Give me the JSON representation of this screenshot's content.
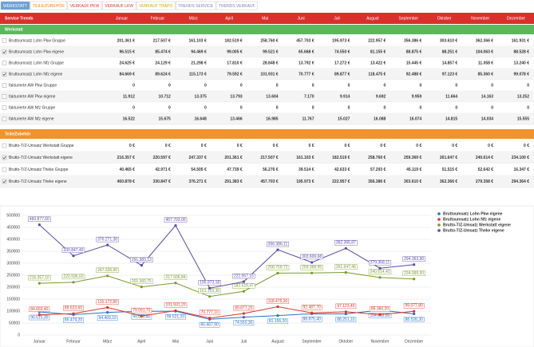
{
  "tabs": [
    "WERKSTATT",
    "TEILE/ZUBEHÖR",
    "VERKAUF PKW",
    "VERKAUF LKW",
    "VERKAUF TRAPO",
    "TRENDS SERVICE",
    "TRENDS VERKAUF"
  ],
  "table": {
    "header": [
      "Service Trends",
      "Januar",
      "Februar",
      "März",
      "April",
      "Mai",
      "Juni",
      "Juli",
      "August",
      "September",
      "Oktober",
      "November",
      "Dezember"
    ],
    "sections": [
      {
        "title": "Werkstatt",
        "color": "#5cb85c",
        "rows": [
          {
            "label": "Bruttoumsatz Lohn Pkw Gruppe",
            "checked": false,
            "cells": [
              "201.361 €",
              "217.507 €",
              "161.103 €",
              "182.519 €",
              "258.760 €",
              "457.703 €",
              "195.973 €",
              "222.957 €",
              "356.386 €",
              "303.610 €",
              "362.366 €",
              "161.931 €"
            ]
          },
          {
            "label": "Bruttoumsatz Lohn Pkw eigene",
            "checked": true,
            "cells": [
              "96.515 €",
              "85.474 €",
              "94.469 €",
              "99.005 €",
              "99.521 €",
              "65.668 €",
              "74.550 €",
              "81.155 €",
              "88.875 €",
              "88.251 €",
              "104.063 €",
              "88.528 €"
            ]
          },
          {
            "label": "Bruttoumsatz Lohn Nfz Gruppe",
            "checked": false,
            "cells": [
              "24.625 €",
              "24.129 €",
              "21.298 €",
              "17.810 €",
              "28.848 €",
              "13.792 €",
              "17.272 €",
              "13.422 €",
              "15.445 €",
              "14.857 €",
              "11.058 €",
              "13.240 €"
            ]
          },
          {
            "label": "Bruttoumsatz Lohn Nfz eigene",
            "checked": true,
            "cells": [
              "84.669 €",
              "89.624 €",
              "115.173 €",
              "79.592 €",
              "101.931 €",
              "70.777 €",
              "89.877 €",
              "118.475 €",
              "92.488 €",
              "97.123 €",
              "85.360 €",
              "99.078 €"
            ]
          },
          {
            "label": "fakturierte AW Pkw Gruppe",
            "checked": false,
            "cells": [
              "0",
              "0",
              "0",
              "0",
              "0",
              "0",
              "0",
              "0",
              "0",
              "0",
              "0",
              "0"
            ]
          },
          {
            "label": "fakturierte AW Pkw eigene",
            "checked": false,
            "cells": [
              "11.912",
              "10.712",
              "13.375",
              "13.793",
              "13.604",
              "7.170",
              "9.914",
              "9.692",
              "9.959",
              "11.664",
              "14.163",
              "13.252"
            ]
          },
          {
            "label": "fakturierte AW Nfz Gruppe",
            "checked": false,
            "cells": [
              "0",
              "0",
              "0",
              "0",
              "0",
              "0",
              "0",
              "0",
              "0",
              "0",
              "0",
              "0"
            ]
          },
          {
            "label": "fakturierte AW Nfz eigene",
            "checked": false,
            "cells": [
              "16.522",
              "15.675",
              "16.648",
              "13.466",
              "16.985",
              "11.767",
              "15.027",
              "16.088",
              "16.074",
              "14.815",
              "14.034",
              "15.555"
            ]
          }
        ]
      },
      {
        "title": "Teile/Zubehör",
        "color": "#f0932b",
        "rows": [
          {
            "label": "Brutto-T/Z-Umsatz Werkstatt Gruppe",
            "checked": false,
            "cells": [
              "0 €",
              "0 €",
              "0 €",
              "0 €",
              "0 €",
              "0 €",
              "0 €",
              "0 €",
              "0 €",
              "0 €",
              "0 €",
              "0 €"
            ]
          },
          {
            "label": "Brutto-T/Z-Umsatz Werkstatt eigene",
            "checked": true,
            "cells": [
              "216.357 €",
              "220.597 €",
              "247.337 €",
              "201.361 €",
              "217.507 €",
              "161.103 €",
              "182.519 €",
              "258.760 €",
              "259.369 €",
              "261.647 €",
              "240.614 €",
              "234.100 €"
            ]
          },
          {
            "label": "Brutto-T/Z-Umsatz Theke Gruppe",
            "checked": false,
            "cells": [
              "40.465 €",
              "42.971 €",
              "54.505 €",
              "47.739 €",
              "56.276 €",
              "39.514 €",
              "42.633 €",
              "57.293 €",
              "45.119 €",
              "51.515 €",
              "52.642 €",
              "16.347 €"
            ]
          },
          {
            "label": "Brutto-T/Z-Umsatz Theke eigene",
            "checked": true,
            "cells": [
              "460.878 €",
              "330.847 €",
              "376.271 €",
              "291.383 €",
              "457.703 €",
              "195.973 €",
              "222.957 €",
              "356.386 €",
              "303.610 €",
              "362.366 €",
              "279.358 €",
              "294.364 €"
            ]
          }
        ]
      }
    ]
  },
  "chart_data": {
    "type": "line",
    "categories": [
      "Januar",
      "Februar",
      "März",
      "April",
      "Mai",
      "Juni",
      "Juli",
      "August",
      "September",
      "Oktober",
      "November",
      "Dezember"
    ],
    "ylim": [
      0,
      500000
    ],
    "yticks": [
      0,
      50000,
      100000,
      150000,
      200000,
      250000,
      300000,
      350000,
      400000,
      450000,
      500000
    ],
    "grid": true,
    "legend": "right",
    "series": [
      {
        "name": "Bruttoumsatz Lohn Pkw eigene",
        "color": "#2f6fc0",
        "values": [
          96515.3,
          85474.2,
          94469.1,
          99005.4,
          99521.2,
          65667.9,
          74550.3,
          81155.2,
          88875.4,
          88251.1,
          104062.8,
          88528.3
        ],
        "value_labels": [
          "96.515,30",
          "85.474,20",
          "94.469,10",
          "99.005,40",
          "99.521,20",
          "65.667,90",
          "74.550,30",
          "81.155,20",
          "88.875,40",
          "88.251,10",
          "104.062,80",
          "88.528,30"
        ]
      },
      {
        "name": "Bruttoumsatz Lohn Nfz eigene",
        "color": "#d23a2a",
        "values": [
          84669.4,
          89623.6,
          115172.8,
          79591.7,
          101931.2,
          70777.1,
          89877.2,
          118475.3,
          92487.7,
          97123.4,
          85360.2,
          99077.8
        ],
        "value_labels": [
          "84.669,40",
          "89.623,60",
          "115.172,80",
          "79.591,70",
          "101.931,20",
          "70.777,10",
          "89.877,20",
          "118.475,30",
          "92.487,70",
          "97.123,40",
          "85.360,20",
          "99.077,80"
        ]
      },
      {
        "name": "Brutto-T/Z-Umsatz Werkstatt eigene",
        "color": "#7a9a2e",
        "values": [
          216357.1,
          220596.6,
          247336.9,
          201360.75,
          217506.84,
          161103.3,
          182518.47,
          258759.72,
          259368.95,
          261647.46,
          240614.43,
          234099.5
        ],
        "value_labels": [
          "216.357,10",
          "220.596,60",
          "247.336,90",
          "201.360,75",
          "217.506,84",
          "161.103,30",
          "182.518,47",
          "258.759,72",
          "259.368,95",
          "261.647,46",
          "240.614,43",
          "234.099,50"
        ]
      },
      {
        "name": "Brutto-T/Z-Umsatz Theke eigene",
        "color": "#5b4a9e",
        "values": [
          460877.6,
          330847.4,
          376271.3,
          291383.13,
          457703,
          195973.18,
          222957.15,
          356386.11,
          303609.68,
          362365.87,
          279358.11,
          294363.9
        ],
        "value_labels": [
          "460.877,60",
          "330.847,40",
          "376.271,30",
          "291.383,13",
          "457.703,00",
          "195.973,18",
          "222.957,15",
          "356.386,11",
          "303.609,68",
          "362.365,87",
          "279.358,11",
          "294.363,90"
        ]
      }
    ]
  }
}
